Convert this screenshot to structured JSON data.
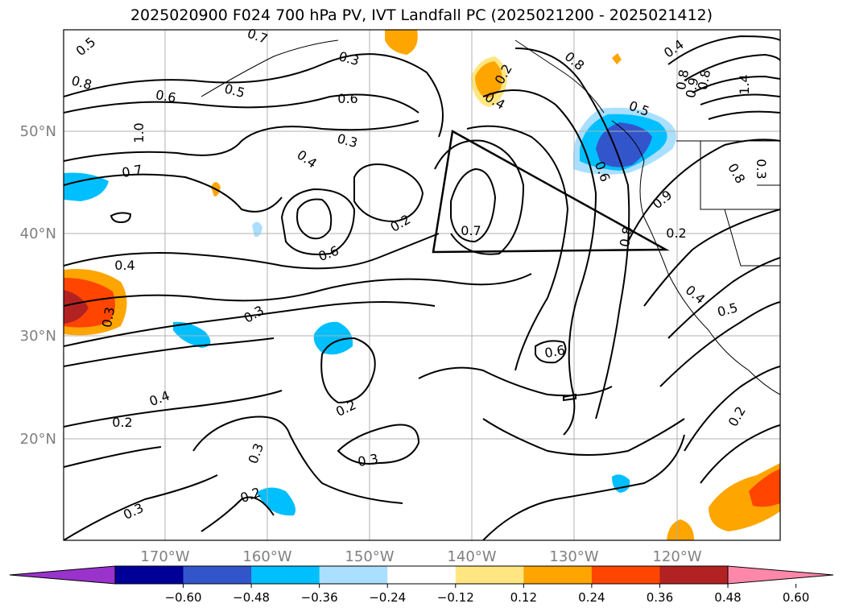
{
  "title": "2025020900 F024 700 hPa PV, IVT Landfall PC (2025021200 - 2025021412)",
  "lat_labels": [
    "50°N",
    "40°N",
    "30°N",
    "20°N"
  ],
  "lon_labels": [
    "170°W",
    "160°W",
    "150°W",
    "140°W",
    "130°W",
    "120°W"
  ],
  "colorbar": {
    "ticks": [
      "−0.60",
      "−0.48",
      "−0.36",
      "−0.24",
      "−0.12",
      "0.12",
      "0.24",
      "0.36",
      "0.48",
      "0.60"
    ],
    "colors": [
      "#9933cc",
      "#000099",
      "#3355cc",
      "#00bfff",
      "#aadfff",
      "#ffffff",
      "#ffe680",
      "#ffa500",
      "#ff4500",
      "#b22222",
      "#ff88aa"
    ]
  },
  "contour_labels": [
    "0.5",
    "0.8",
    "0.7",
    "0.3",
    "0.8",
    "0.4",
    "0.8",
    "0.9",
    "0.8",
    "0.6",
    "0.5",
    "0.6",
    "1.0",
    "0.7",
    "0.3",
    "0.4",
    "0.4",
    "0.5",
    "1.4",
    "0.6",
    "0.2",
    "0.7",
    "0.6",
    "0.9",
    "0.8",
    "0.8",
    "0.4",
    "0.3",
    "0.3",
    "0.4",
    "0.5",
    "0.3",
    "0.6",
    "0.4",
    "0.2",
    "0.2",
    "0.3",
    "0.3",
    "0.2",
    "0.3",
    "0.2",
    "0.2",
    "0.2"
  ]
}
